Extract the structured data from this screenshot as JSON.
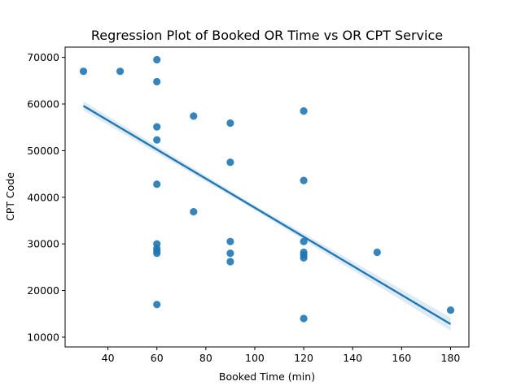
{
  "chart_data": {
    "type": "scatter",
    "title": "Regression Plot of Booked OR Time vs OR CPT Service",
    "xlabel": "Booked Time (min)",
    "ylabel": "CPT Code",
    "xlim": [
      22.5,
      187.5
    ],
    "ylim": [
      7900,
      72200
    ],
    "xticks": [
      40,
      60,
      80,
      100,
      120,
      140,
      160,
      180
    ],
    "yticks": [
      10000,
      20000,
      30000,
      40000,
      50000,
      60000,
      70000
    ],
    "grid": false,
    "points": [
      {
        "x": 30,
        "y": 67000
      },
      {
        "x": 45,
        "y": 67000
      },
      {
        "x": 60,
        "y": 69500
      },
      {
        "x": 60,
        "y": 64800
      },
      {
        "x": 60,
        "y": 55100
      },
      {
        "x": 60,
        "y": 52300
      },
      {
        "x": 60,
        "y": 42800
      },
      {
        "x": 60,
        "y": 30000
      },
      {
        "x": 60,
        "y": 29000
      },
      {
        "x": 60,
        "y": 28500
      },
      {
        "x": 60,
        "y": 28000
      },
      {
        "x": 60,
        "y": 17000
      },
      {
        "x": 75,
        "y": 57400
      },
      {
        "x": 75,
        "y": 36900
      },
      {
        "x": 90,
        "y": 55900
      },
      {
        "x": 90,
        "y": 47500
      },
      {
        "x": 90,
        "y": 30500
      },
      {
        "x": 90,
        "y": 28000
      },
      {
        "x": 90,
        "y": 26200
      },
      {
        "x": 120,
        "y": 58500
      },
      {
        "x": 120,
        "y": 43600
      },
      {
        "x": 120,
        "y": 30500
      },
      {
        "x": 120,
        "y": 28200
      },
      {
        "x": 120,
        "y": 27600
      },
      {
        "x": 120,
        "y": 27000
      },
      {
        "x": 120,
        "y": 14000
      },
      {
        "x": 150,
        "y": 28200
      },
      {
        "x": 180,
        "y": 15800
      }
    ],
    "regression": {
      "x": [
        30,
        180
      ],
      "y": [
        59600,
        12800
      ],
      "ci_lower": [
        58600,
        11400
      ],
      "ci_upper": [
        60600,
        14200
      ],
      "ci_mid_x": 100,
      "ci_mid_halfwidth": 500
    },
    "colors": {
      "points": "#1f77b4",
      "line": "#1f77b4",
      "band": "#1f77b4"
    }
  }
}
